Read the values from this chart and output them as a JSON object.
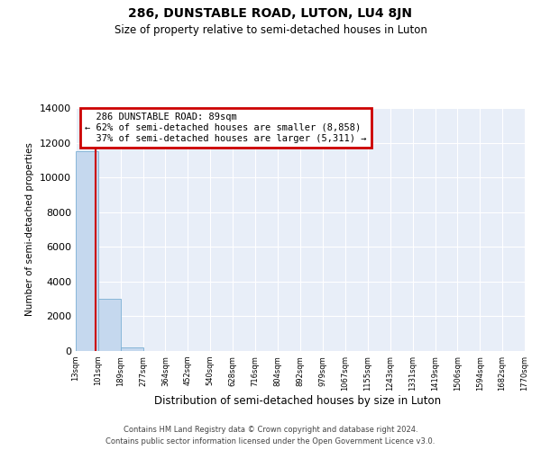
{
  "title": "286, DUNSTABLE ROAD, LUTON, LU4 8JN",
  "subtitle": "Size of property relative to semi-detached houses in Luton",
  "xlabel": "Distribution of semi-detached houses by size in Luton",
  "ylabel": "Number of semi-detached properties",
  "bin_edges": [
    13,
    101,
    189,
    277,
    364,
    452,
    540,
    628,
    716,
    804,
    892,
    979,
    1067,
    1155,
    1243,
    1331,
    1419,
    1506,
    1594,
    1682,
    1770
  ],
  "bar_heights": [
    11500,
    3000,
    200,
    0,
    0,
    0,
    0,
    0,
    0,
    0,
    0,
    0,
    0,
    0,
    0,
    0,
    0,
    0,
    0,
    0
  ],
  "bar_color": "#c5d8ee",
  "bar_edge_color": "#7aafd4",
  "property_size": 89,
  "property_label": "286 DUNSTABLE ROAD: 89sqm",
  "pct_smaller": 62,
  "n_smaller": 8858,
  "pct_larger": 37,
  "n_larger": 5311,
  "vline_color": "#cc0000",
  "annotation_box_color": "#cc0000",
  "ylim": [
    0,
    14000
  ],
  "yticks": [
    0,
    2000,
    4000,
    6000,
    8000,
    10000,
    12000,
    14000
  ],
  "footer_line1": "Contains HM Land Registry data © Crown copyright and database right 2024.",
  "footer_line2": "Contains public sector information licensed under the Open Government Licence v3.0.",
  "background_color": "#e8eef8",
  "grid_color": "#ffffff"
}
